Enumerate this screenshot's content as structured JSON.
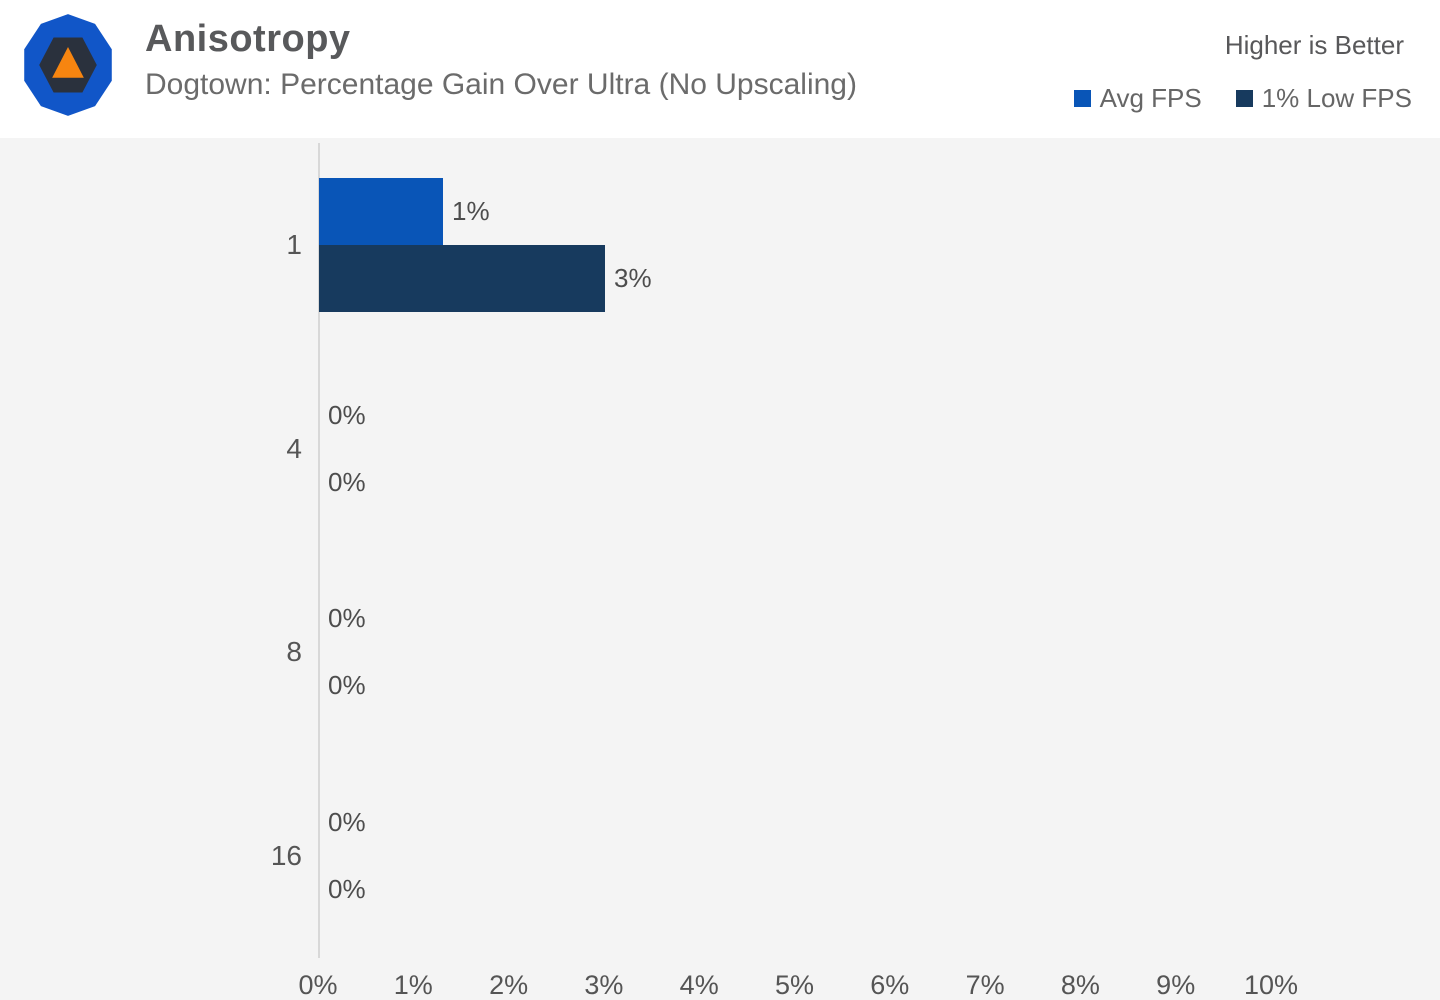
{
  "header": {
    "title": "Anisotropy",
    "subtitle": "Dogtown: Percentage Gain Over Ultra (No Upscaling)",
    "note": "Higher is Better",
    "logo": {
      "outer_color": "#1156c8",
      "inner_color": "#2a313d",
      "triangle_color": "#f78510"
    }
  },
  "colors": {
    "header_background": "#ffffff",
    "chart_background": "#f4f4f4",
    "axis_line": "#d8d8d8",
    "avg_fps": "#0955b7",
    "low_fps": "#173a5e",
    "title_text": "#58595b",
    "subtitle_text": "#6b6b6b",
    "tick_text": "#555555",
    "value_label_text": "#4d4d4d"
  },
  "chart_data": {
    "type": "bar",
    "orientation": "horizontal",
    "title": "Anisotropy",
    "subtitle": "Dogtown: Percentage Gain Over Ultra (No Upscaling)",
    "note": "Higher is Better",
    "categories": [
      "1",
      "4",
      "8",
      "16"
    ],
    "series": [
      {
        "name": "Avg FPS",
        "color": "#0955b7",
        "values": [
          1.3,
          0,
          0,
          0
        ],
        "labels": [
          "1%",
          "0%",
          "0%",
          "0%"
        ]
      },
      {
        "name": "1% Low FPS",
        "color": "#173a5e",
        "values": [
          3,
          0,
          0,
          0
        ],
        "labels": [
          "3%",
          "0%",
          "0%",
          "0%"
        ]
      }
    ],
    "x_ticks": [
      "0%",
      "1%",
      "2%",
      "3%",
      "4%",
      "5%",
      "6%",
      "7%",
      "8%",
      "9%",
      "10%"
    ],
    "xlim": [
      0,
      10
    ],
    "grid": false,
    "legend_position": "top-right"
  }
}
